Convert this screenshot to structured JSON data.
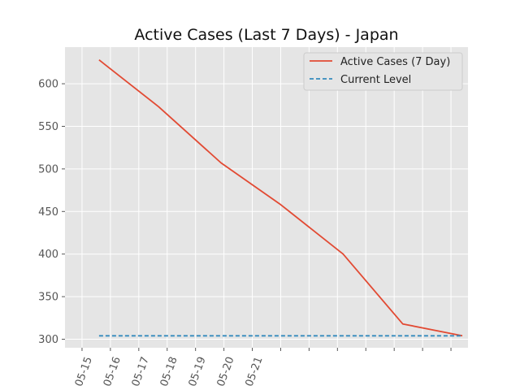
{
  "chart_data": {
    "type": "line",
    "title": "Active Cases (Last 7 Days) - Japan",
    "xlabel": "",
    "ylabel": "",
    "x_tick_labels": [
      "05-15",
      "05-16",
      "05-17",
      "05-18",
      "05-19",
      "05-20",
      "05-21",
      "",
      "",
      "",
      "",
      "",
      "",
      ""
    ],
    "x_range": [
      -0.6,
      13.6
    ],
    "ylim": [
      290,
      643
    ],
    "y_ticks": [
      300,
      350,
      400,
      450,
      500,
      550,
      600
    ],
    "grid": true,
    "legend_placement": "upper right",
    "series": [
      {
        "name": "Active Cases (7 Day)",
        "style": "solid",
        "color": "#e24a33",
        "points": [
          [
            0.6,
            628
          ],
          [
            2.7,
            573
          ],
          [
            4.9,
            507
          ],
          [
            7.0,
            458
          ],
          [
            9.2,
            400
          ],
          [
            11.3,
            318
          ],
          [
            13.4,
            304
          ]
        ]
      },
      {
        "name": "Current Level",
        "style": "dashed",
        "color": "#348abd",
        "points": [
          [
            0.6,
            304
          ],
          [
            13.4,
            304
          ]
        ]
      }
    ]
  },
  "colors": {
    "plot_background": "#e5e5e5",
    "grid": "#ffffff",
    "figure_background": "#ffffff"
  }
}
